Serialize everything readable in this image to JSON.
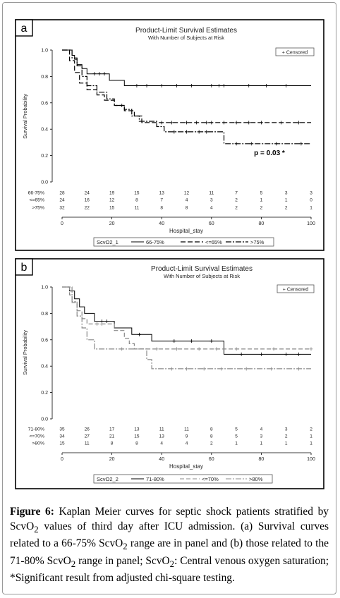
{
  "panels": [
    {
      "letter": "a",
      "title": "Product-Limit Survival Estimates",
      "subtitle": "With Number of Subjects at Risk",
      "legend_box": "+ Censored",
      "annotation": "p = 0.03 *",
      "group_var": "ScvO2_1",
      "chart_data": {
        "type": "line",
        "xlabel": "Hospital_stay",
        "ylabel": "Survival Probability",
        "xlim": [
          0,
          100
        ],
        "ylim": [
          0,
          1
        ],
        "x_ticks": [
          "0",
          "20",
          "40",
          "60",
          "80",
          "100"
        ],
        "y_ticks": [
          "0.0",
          "0.2",
          "0.4",
          "0.6",
          "0.8",
          "1.0"
        ],
        "series": [
          {
            "name": "66-75%",
            "style": "solid",
            "steps": [
              [
                0,
                1.0
              ],
              [
                4,
                1.0
              ],
              [
                4,
                0.96
              ],
              [
                5,
                0.96
              ],
              [
                5,
                0.93
              ],
              [
                6,
                0.93
              ],
              [
                6,
                0.89
              ],
              [
                8,
                0.89
              ],
              [
                8,
                0.86
              ],
              [
                10,
                0.86
              ],
              [
                10,
                0.82
              ],
              [
                19,
                0.82
              ],
              [
                19,
                0.77
              ],
              [
                25,
                0.77
              ],
              [
                25,
                0.73
              ],
              [
                100,
                0.73
              ]
            ],
            "censored": [
              [
                13,
                0.82
              ],
              [
                15,
                0.82
              ],
              [
                17,
                0.82
              ],
              [
                30,
                0.73
              ],
              [
                34,
                0.73
              ],
              [
                40,
                0.73
              ],
              [
                46,
                0.73
              ],
              [
                52,
                0.73
              ],
              [
                60,
                0.73
              ],
              [
                63,
                0.73
              ],
              [
                65,
                0.73
              ],
              [
                75,
                0.73
              ],
              [
                82,
                0.73
              ],
              [
                90,
                0.73
              ]
            ]
          },
          {
            "name": "<=65%",
            "style": "dash",
            "steps": [
              [
                0,
                1.0
              ],
              [
                3,
                1.0
              ],
              [
                3,
                0.92
              ],
              [
                5,
                0.92
              ],
              [
                5,
                0.83
              ],
              [
                7,
                0.83
              ],
              [
                7,
                0.75
              ],
              [
                10,
                0.75
              ],
              [
                10,
                0.7
              ],
              [
                14,
                0.7
              ],
              [
                14,
                0.66
              ],
              [
                17,
                0.66
              ],
              [
                17,
                0.62
              ],
              [
                21,
                0.62
              ],
              [
                21,
                0.58
              ],
              [
                25,
                0.58
              ],
              [
                25,
                0.54
              ],
              [
                29,
                0.54
              ],
              [
                29,
                0.5
              ],
              [
                32,
                0.5
              ],
              [
                32,
                0.45
              ],
              [
                100,
                0.45
              ]
            ],
            "censored": [
              [
                40,
                0.45
              ],
              [
                44,
                0.45
              ],
              [
                50,
                0.45
              ],
              [
                54,
                0.45
              ],
              [
                58,
                0.45
              ],
              [
                60,
                0.45
              ],
              [
                65,
                0.45
              ],
              [
                70,
                0.45
              ],
              [
                75,
                0.45
              ],
              [
                80,
                0.45
              ],
              [
                88,
                0.45
              ],
              [
                95,
                0.45
              ]
            ]
          },
          {
            "name": ">75%",
            "style": "dashdot",
            "steps": [
              [
                0,
                1.0
              ],
              [
                4,
                1.0
              ],
              [
                4,
                0.94
              ],
              [
                6,
                0.94
              ],
              [
                6,
                0.88
              ],
              [
                8,
                0.88
              ],
              [
                8,
                0.8
              ],
              [
                10,
                0.8
              ],
              [
                10,
                0.73
              ],
              [
                14,
                0.73
              ],
              [
                14,
                0.68
              ],
              [
                18,
                0.68
              ],
              [
                18,
                0.63
              ],
              [
                21,
                0.63
              ],
              [
                21,
                0.58
              ],
              [
                25,
                0.58
              ],
              [
                25,
                0.55
              ],
              [
                28,
                0.55
              ],
              [
                28,
                0.5
              ],
              [
                31,
                0.5
              ],
              [
                31,
                0.46
              ],
              [
                38,
                0.46
              ],
              [
                38,
                0.42
              ],
              [
                41,
                0.42
              ],
              [
                41,
                0.38
              ],
              [
                65,
                0.38
              ],
              [
                65,
                0.29
              ],
              [
                100,
                0.29
              ]
            ],
            "censored": [
              [
                24,
                0.58
              ],
              [
                45,
                0.38
              ],
              [
                50,
                0.38
              ],
              [
                55,
                0.38
              ],
              [
                58,
                0.38
              ],
              [
                70,
                0.29
              ],
              [
                76,
                0.29
              ],
              [
                86,
                0.29
              ],
              [
                96,
                0.29
              ]
            ]
          }
        ]
      },
      "risk_table": {
        "labels": [
          "66-75%",
          "<=65%",
          ">75%"
        ],
        "columns": [
          0,
          10,
          20,
          30,
          40,
          50,
          60,
          70,
          80,
          90,
          100
        ],
        "rows": [
          [
            "28",
            "24",
            "19",
            "15",
            "13",
            "12",
            "11",
            "7",
            "5",
            "3",
            "3"
          ],
          [
            "24",
            "16",
            "12",
            "8",
            "7",
            "4",
            "3",
            "2",
            "1",
            "1",
            "0"
          ],
          [
            "32",
            "22",
            "15",
            "11",
            "8",
            "8",
            "4",
            "2",
            "2",
            "2",
            "1"
          ]
        ]
      }
    },
    {
      "letter": "b",
      "title": "Product-Limit Survival Estimates",
      "subtitle": "With Number of Subjects at Risk",
      "legend_box": "+ Censored",
      "annotation": "",
      "group_var": "ScvO2_2",
      "chart_data": {
        "type": "line",
        "xlabel": "Hospital_stay",
        "ylabel": "Survival Probability",
        "xlim": [
          0,
          100
        ],
        "ylim": [
          0,
          1
        ],
        "x_ticks": [
          "0",
          "20",
          "40",
          "60",
          "80",
          "100"
        ],
        "y_ticks": [
          "0.0",
          "0.2",
          "0.4",
          "0.6",
          "0.8",
          "1.0"
        ],
        "series": [
          {
            "name": "71-80%",
            "style": "solid",
            "steps": [
              [
                0,
                1.0
              ],
              [
                3,
                1.0
              ],
              [
                3,
                0.97
              ],
              [
                5,
                0.97
              ],
              [
                5,
                0.91
              ],
              [
                7,
                0.91
              ],
              [
                7,
                0.85
              ],
              [
                9,
                0.85
              ],
              [
                9,
                0.8
              ],
              [
                13,
                0.8
              ],
              [
                13,
                0.74
              ],
              [
                21,
                0.74
              ],
              [
                21,
                0.69
              ],
              [
                28,
                0.69
              ],
              [
                28,
                0.64
              ],
              [
                36,
                0.64
              ],
              [
                36,
                0.59
              ],
              [
                65,
                0.59
              ],
              [
                65,
                0.49
              ],
              [
                100,
                0.49
              ]
            ],
            "censored": [
              [
                16,
                0.74
              ],
              [
                18,
                0.74
              ],
              [
                31,
                0.64
              ],
              [
                45,
                0.59
              ],
              [
                52,
                0.59
              ],
              [
                60,
                0.59
              ],
              [
                72,
                0.49
              ],
              [
                80,
                0.49
              ],
              [
                90,
                0.49
              ],
              [
                95,
                0.49
              ]
            ]
          },
          {
            "name": "<=70%",
            "style": "dash",
            "steps": [
              [
                0,
                1.0
              ],
              [
                3,
                1.0
              ],
              [
                3,
                0.94
              ],
              [
                4,
                0.94
              ],
              [
                4,
                0.88
              ],
              [
                6,
                0.88
              ],
              [
                6,
                0.82
              ],
              [
                8,
                0.82
              ],
              [
                8,
                0.76
              ],
              [
                10,
                0.76
              ],
              [
                10,
                0.72
              ],
              [
                21,
                0.72
              ],
              [
                21,
                0.67
              ],
              [
                25,
                0.67
              ],
              [
                25,
                0.61
              ],
              [
                27,
                0.61
              ],
              [
                27,
                0.57
              ],
              [
                29,
                0.57
              ],
              [
                29,
                0.53
              ],
              [
                100,
                0.53
              ]
            ],
            "censored": [
              [
                14,
                0.72
              ],
              [
                16,
                0.72
              ],
              [
                38,
                0.53
              ],
              [
                46,
                0.53
              ],
              [
                55,
                0.53
              ],
              [
                62,
                0.53
              ],
              [
                70,
                0.53
              ],
              [
                85,
                0.53
              ],
              [
                100,
                0.53
              ]
            ]
          },
          {
            "name": ">80%",
            "style": "dashdot",
            "steps": [
              [
                0,
                1.0
              ],
              [
                4,
                1.0
              ],
              [
                4,
                0.89
              ],
              [
                6,
                0.89
              ],
              [
                6,
                0.78
              ],
              [
                8,
                0.78
              ],
              [
                8,
                0.69
              ],
              [
                10,
                0.69
              ],
              [
                10,
                0.6
              ],
              [
                13,
                0.6
              ],
              [
                13,
                0.53
              ],
              [
                34,
                0.53
              ],
              [
                34,
                0.45
              ],
              [
                36,
                0.45
              ],
              [
                36,
                0.38
              ],
              [
                100,
                0.38
              ]
            ],
            "censored": [
              [
                24,
                0.53
              ],
              [
                44,
                0.38
              ],
              [
                50,
                0.38
              ],
              [
                57,
                0.38
              ],
              [
                64,
                0.38
              ],
              [
                74,
                0.38
              ],
              [
                84,
                0.38
              ],
              [
                95,
                0.38
              ]
            ]
          }
        ]
      },
      "risk_table": {
        "labels": [
          "71-80%",
          "<=70%",
          ">80%"
        ],
        "columns": [
          0,
          10,
          20,
          30,
          40,
          50,
          60,
          70,
          80,
          90,
          100
        ],
        "rows": [
          [
            "35",
            "26",
            "17",
            "13",
            "11",
            "11",
            "8",
            "5",
            "4",
            "3",
            "2"
          ],
          [
            "34",
            "27",
            "21",
            "15",
            "13",
            "9",
            "8",
            "5",
            "3",
            "2",
            "1"
          ],
          [
            "15",
            "11",
            "8",
            "8",
            "4",
            "4",
            "2",
            "1",
            "1",
            "1",
            "1"
          ]
        ]
      }
    }
  ],
  "caption": {
    "figure_label": "Figure 6:",
    "line1": "Kaplan Meier curves for septic shock patients stratified by",
    "line2_pre": "ScvO",
    "line2_sub": "2",
    "line2_post": " values of third day after ICU admission. (a) Survival curves",
    "line3_pre": "related to a 66-75% ScvO",
    "line3_sub": "2",
    "line3_post": " range are in panel and (b) those related",
    "line4_pre": "to the 71-80% ScvO",
    "line4_sub": "2",
    "line4_mid": " range in panel; ScvO",
    "line4_sub2": "2",
    "line4_post": ": Central venous oxygen",
    "line5": "saturation; *Significant result from adjusted chi-square testing."
  }
}
